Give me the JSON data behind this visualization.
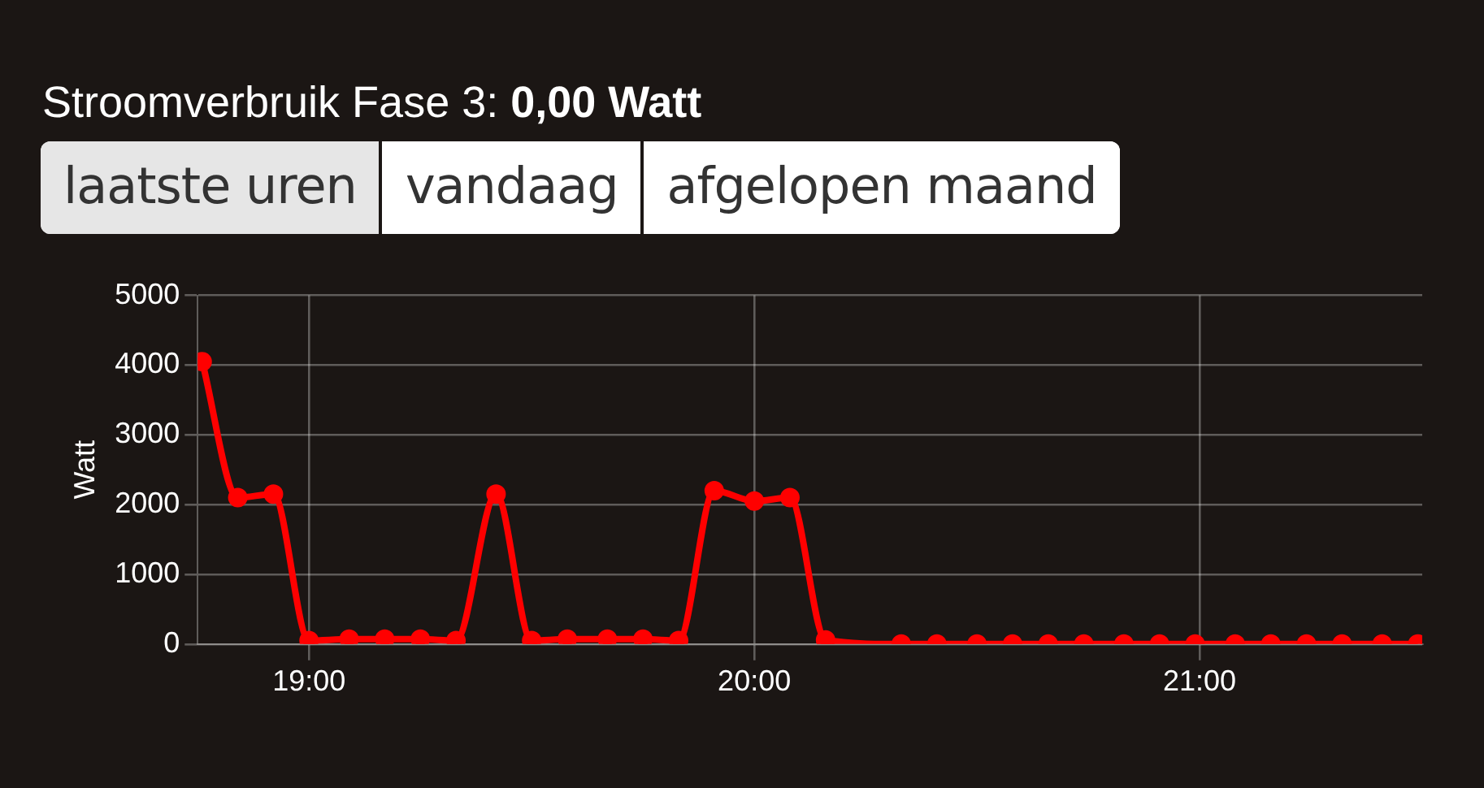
{
  "chart_data": {
    "type": "line",
    "title": "Stroomverbruik Fase 3: 0,00 Watt",
    "annotations": [
      "laatste uren",
      "vandaag",
      "afgelopen maand"
    ],
    "ylabel": "Watt",
    "x": [
      18.76,
      18.84,
      18.92,
      19.0,
      19.09,
      19.17,
      19.25,
      19.33,
      19.42,
      19.5,
      19.58,
      19.67,
      19.75,
      19.83,
      19.91,
      20.0,
      20.08,
      20.16,
      20.33,
      20.41,
      20.5,
      20.58,
      20.66,
      20.74,
      20.83,
      20.91,
      20.99,
      21.08,
      21.16,
      21.24,
      21.32,
      21.41,
      21.49
    ],
    "series": [
      {
        "color": "#ff0000",
        "values": [
          4050,
          2100,
          2150,
          50,
          70,
          70,
          70,
          50,
          2150,
          50,
          70,
          70,
          70,
          50,
          2200,
          2050,
          2100,
          60,
          0,
          0,
          0,
          0,
          0,
          0,
          0,
          0,
          0,
          0,
          0,
          0,
          0,
          0,
          0
        ]
      }
    ],
    "xlim": [
      18.75,
      21.5
    ],
    "xticks": [
      {
        "value": 19,
        "label": "19:00"
      },
      {
        "value": 20,
        "label": "20:00"
      },
      {
        "value": 21,
        "label": "21:00"
      }
    ],
    "ylim": [
      0,
      5000
    ],
    "yticks": [
      0,
      1000,
      2000,
      3000,
      4000,
      5000
    ],
    "grid": true,
    "marker": "circle",
    "line_style": "solid",
    "legend": false
  }
}
